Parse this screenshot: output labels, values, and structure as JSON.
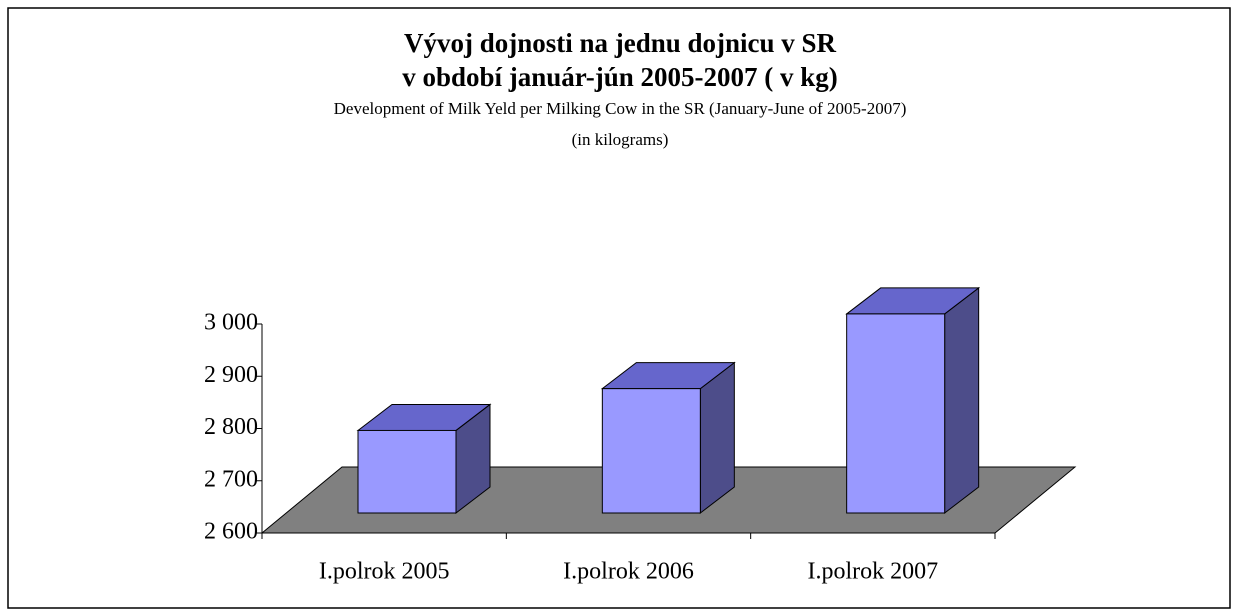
{
  "chart_data": {
    "type": "bar3d",
    "title": [
      "Vývoj dojnosti na jednu dojnicu v SR",
      "v období január-jún 2005-2007 ( v kg)"
    ],
    "subtitle": "Development of Milk Yeld per Milking Cow  in  the SR (January-June of 2005-2007)",
    "note": "(in kilograms)",
    "categories": [
      "I.polrok 2005",
      "I.polrok 2006",
      "I.polrok 2007"
    ],
    "values": [
      2758,
      2838,
      2981
    ],
    "color": "#9999ff",
    "ylim": [
      2600,
      3000
    ],
    "yticks": [
      {
        "value": 2600,
        "label": "2 600"
      },
      {
        "value": 2700,
        "label": "2 700"
      },
      {
        "value": 2800,
        "label": "2 800"
      },
      {
        "value": 2900,
        "label": "2 900"
      },
      {
        "value": 3000,
        "label": "3 000"
      }
    ],
    "floor_color": "#808080"
  }
}
